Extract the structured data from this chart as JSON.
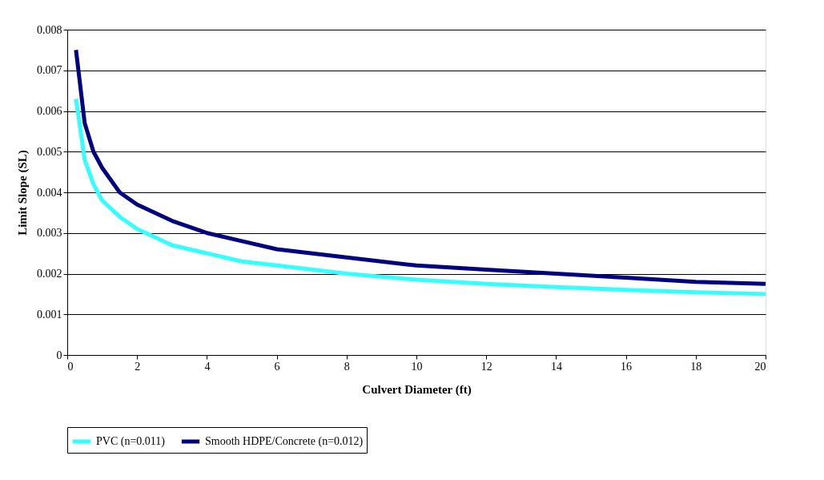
{
  "chart_data": {
    "type": "line",
    "xlabel": "Culvert Diameter (ft)",
    "ylabel": "Limit Slope (SL)",
    "x": [
      0.25,
      0.5,
      0.75,
      1,
      1.5,
      2,
      3,
      4,
      5,
      6,
      8,
      10,
      12,
      14,
      16,
      18,
      20
    ],
    "series": [
      {
        "name": "PVC (n=0.011)",
        "color": "#33ffff",
        "values": [
          0.0063,
          0.0048,
          0.0042,
          0.0038,
          0.0034,
          0.0031,
          0.0027,
          0.0025,
          0.0023,
          0.0022,
          0.002,
          0.00185,
          0.00175,
          0.00167,
          0.0016,
          0.00154,
          0.0015
        ]
      },
      {
        "name": "Smooth HDPE/Concrete (n=0.012)",
        "color": "#000080",
        "values": [
          0.0075,
          0.0057,
          0.005,
          0.0046,
          0.004,
          0.0037,
          0.0033,
          0.003,
          0.0028,
          0.0026,
          0.0024,
          0.0022,
          0.0021,
          0.002,
          0.0019,
          0.0018,
          0.00175
        ]
      }
    ],
    "xlim": [
      0,
      20
    ],
    "xticks": [
      0,
      2,
      4,
      6,
      8,
      10,
      12,
      14,
      16,
      18,
      20
    ],
    "ylim": [
      0,
      0.008
    ],
    "yticks": [
      0,
      0.001,
      0.002,
      0.003,
      0.004,
      0.005,
      0.006,
      0.007,
      0.008
    ],
    "grid": "y",
    "legend": "bottom",
    "marker": "none",
    "line_style": "solid"
  }
}
